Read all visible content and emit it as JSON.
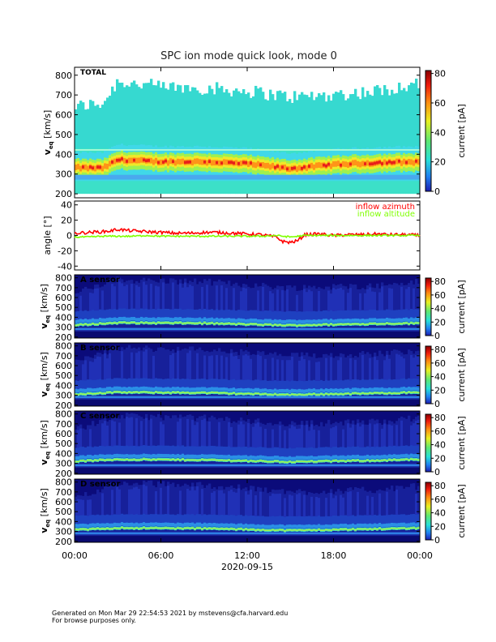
{
  "chart_data": {
    "type": "heatmap",
    "title": "SPC ion mode quick look, mode 0",
    "date_label": "2020-09-15",
    "time_ticks": [
      "00:00",
      "06:00",
      "12:00",
      "18:00",
      "00:00"
    ],
    "velocity_panels": [
      {
        "label": "TOTAL",
        "ylabel_main": "v",
        "ylabel_sub": "eq",
        "ylabel_unit": "[km/s]",
        "yticks": [
          200,
          300,
          400,
          500,
          600,
          700,
          800
        ],
        "ylim": [
          180,
          840
        ],
        "colorbar_label": "current [pA]",
        "colorbar_ticks": [
          0,
          20,
          40,
          60,
          80
        ],
        "background": "#e3f5f1",
        "profile": [
          {
            "time_h": 0,
            "core_kms": 320,
            "upper_kms": 640
          },
          {
            "time_h": 2,
            "core_kms": 318,
            "upper_kms": 660
          },
          {
            "time_h": 3,
            "core_kms": 360,
            "upper_kms": 770
          },
          {
            "time_h": 6,
            "core_kms": 350,
            "upper_kms": 740
          },
          {
            "time_h": 9,
            "core_kms": 350,
            "upper_kms": 735
          },
          {
            "time_h": 12,
            "core_kms": 340,
            "upper_kms": 720
          },
          {
            "time_h": 15,
            "core_kms": 315,
            "upper_kms": 690
          },
          {
            "time_h": 18,
            "core_kms": 335,
            "upper_kms": 700
          },
          {
            "time_h": 21,
            "core_kms": 345,
            "upper_kms": 720
          },
          {
            "time_h": 24,
            "core_kms": 350,
            "upper_kms": 760
          }
        ]
      },
      {
        "label": "A sensor",
        "ylabel_main": "v",
        "ylabel_sub": "eq",
        "ylabel_unit": "[km/s]",
        "yticks": [
          200,
          300,
          400,
          500,
          600,
          700,
          800
        ],
        "ylim": [
          190,
          830
        ],
        "colorbar_label": "current [pA]",
        "colorbar_ticks": [
          0,
          20,
          40,
          60,
          80
        ],
        "background": "#0b0b7a",
        "profile": [
          {
            "time_h": 0,
            "core_kms": 320,
            "upper_kms": 640
          },
          {
            "time_h": 3,
            "core_kms": 345,
            "upper_kms": 780
          },
          {
            "time_h": 9,
            "core_kms": 340,
            "upper_kms": 760
          },
          {
            "time_h": 15,
            "core_kms": 318,
            "upper_kms": 700
          },
          {
            "time_h": 21,
            "core_kms": 335,
            "upper_kms": 720
          },
          {
            "time_h": 24,
            "core_kms": 340,
            "upper_kms": 760
          }
        ]
      },
      {
        "label": "B sensor",
        "ylabel_main": "v",
        "ylabel_sub": "eq",
        "ylabel_unit": "[km/s]",
        "yticks": [
          200,
          300,
          400,
          500,
          600,
          700,
          800
        ],
        "ylim": [
          190,
          830
        ],
        "colorbar_label": "current [pA]",
        "colorbar_ticks": [
          0,
          20,
          40,
          60,
          80
        ],
        "background": "#0b0b7a",
        "profile": [
          {
            "time_h": 0,
            "core_kms": 310,
            "upper_kms": 640
          },
          {
            "time_h": 3,
            "core_kms": 330,
            "upper_kms": 780
          },
          {
            "time_h": 9,
            "core_kms": 325,
            "upper_kms": 760
          },
          {
            "time_h": 15,
            "core_kms": 305,
            "upper_kms": 700
          },
          {
            "time_h": 21,
            "core_kms": 320,
            "upper_kms": 720
          },
          {
            "time_h": 24,
            "core_kms": 330,
            "upper_kms": 760
          }
        ]
      },
      {
        "label": "C sensor",
        "ylabel_main": "v",
        "ylabel_sub": "eq",
        "ylabel_unit": "[km/s]",
        "yticks": [
          200,
          300,
          400,
          500,
          600,
          700,
          800
        ],
        "ylim": [
          190,
          830
        ],
        "colorbar_label": "current [pA]",
        "colorbar_ticks": [
          0,
          20,
          40,
          60,
          80
        ],
        "background": "#0b0b7a",
        "profile": [
          {
            "time_h": 0,
            "core_kms": 320,
            "upper_kms": 640
          },
          {
            "time_h": 3,
            "core_kms": 340,
            "upper_kms": 780
          },
          {
            "time_h": 9,
            "core_kms": 335,
            "upper_kms": 760
          },
          {
            "time_h": 15,
            "core_kms": 315,
            "upper_kms": 700
          },
          {
            "time_h": 21,
            "core_kms": 330,
            "upper_kms": 720
          },
          {
            "time_h": 24,
            "core_kms": 340,
            "upper_kms": 760
          }
        ]
      },
      {
        "label": "D sensor",
        "ylabel_main": "v",
        "ylabel_sub": "eq",
        "ylabel_unit": "[km/s]",
        "yticks": [
          200,
          300,
          400,
          500,
          600,
          700,
          800
        ],
        "ylim": [
          190,
          830
        ],
        "colorbar_label": "current [pA]",
        "colorbar_ticks": [
          0,
          20,
          40,
          60,
          80
        ],
        "background": "#0b0b7a",
        "profile": [
          {
            "time_h": 0,
            "core_kms": 315,
            "upper_kms": 640
          },
          {
            "time_h": 3,
            "core_kms": 335,
            "upper_kms": 790
          },
          {
            "time_h": 9,
            "core_kms": 330,
            "upper_kms": 770
          },
          {
            "time_h": 15,
            "core_kms": 310,
            "upper_kms": 700
          },
          {
            "time_h": 21,
            "core_kms": 325,
            "upper_kms": 720
          },
          {
            "time_h": 24,
            "core_kms": 335,
            "upper_kms": 760
          }
        ]
      }
    ],
    "angle_panel": {
      "ylabel": "angle [°]",
      "yticks": [
        -40,
        -20,
        0,
        20,
        40
      ],
      "ylim": [
        -45,
        45
      ],
      "series": [
        {
          "name": "inflow azimuth",
          "color": "#ff0000",
          "x_h": [
            0,
            1,
            2,
            2.5,
            3,
            4,
            5,
            6,
            7,
            8,
            9,
            10,
            11,
            12,
            13,
            14,
            14.5,
            15,
            15.5,
            16,
            17,
            18,
            19,
            20,
            21,
            22,
            23,
            24
          ],
          "y_deg": [
            3,
            4,
            5,
            6,
            8,
            6,
            5,
            4,
            3,
            3,
            4,
            4,
            3,
            2,
            1,
            -2,
            -8,
            -9,
            -7,
            1,
            2,
            0,
            1,
            1,
            2,
            1,
            1,
            0
          ]
        },
        {
          "name": "inflow altitude",
          "color": "#7fff00",
          "x_h": [
            0,
            1,
            2,
            3,
            4,
            5,
            6,
            8,
            10,
            12,
            13,
            14,
            15,
            16,
            17,
            18,
            20,
            22,
            24
          ],
          "y_deg": [
            -2,
            -2,
            -1,
            -1,
            -1,
            0,
            -1,
            -1,
            -1,
            -1,
            -1,
            0,
            -2,
            0,
            0,
            0,
            0,
            0,
            0
          ]
        }
      ]
    }
  },
  "footer": {
    "line1": "Generated on Mon Mar 29 22:54:53 2021 by mstevens@cfa.harvard.edu",
    "line2": "For browse purposes only."
  }
}
